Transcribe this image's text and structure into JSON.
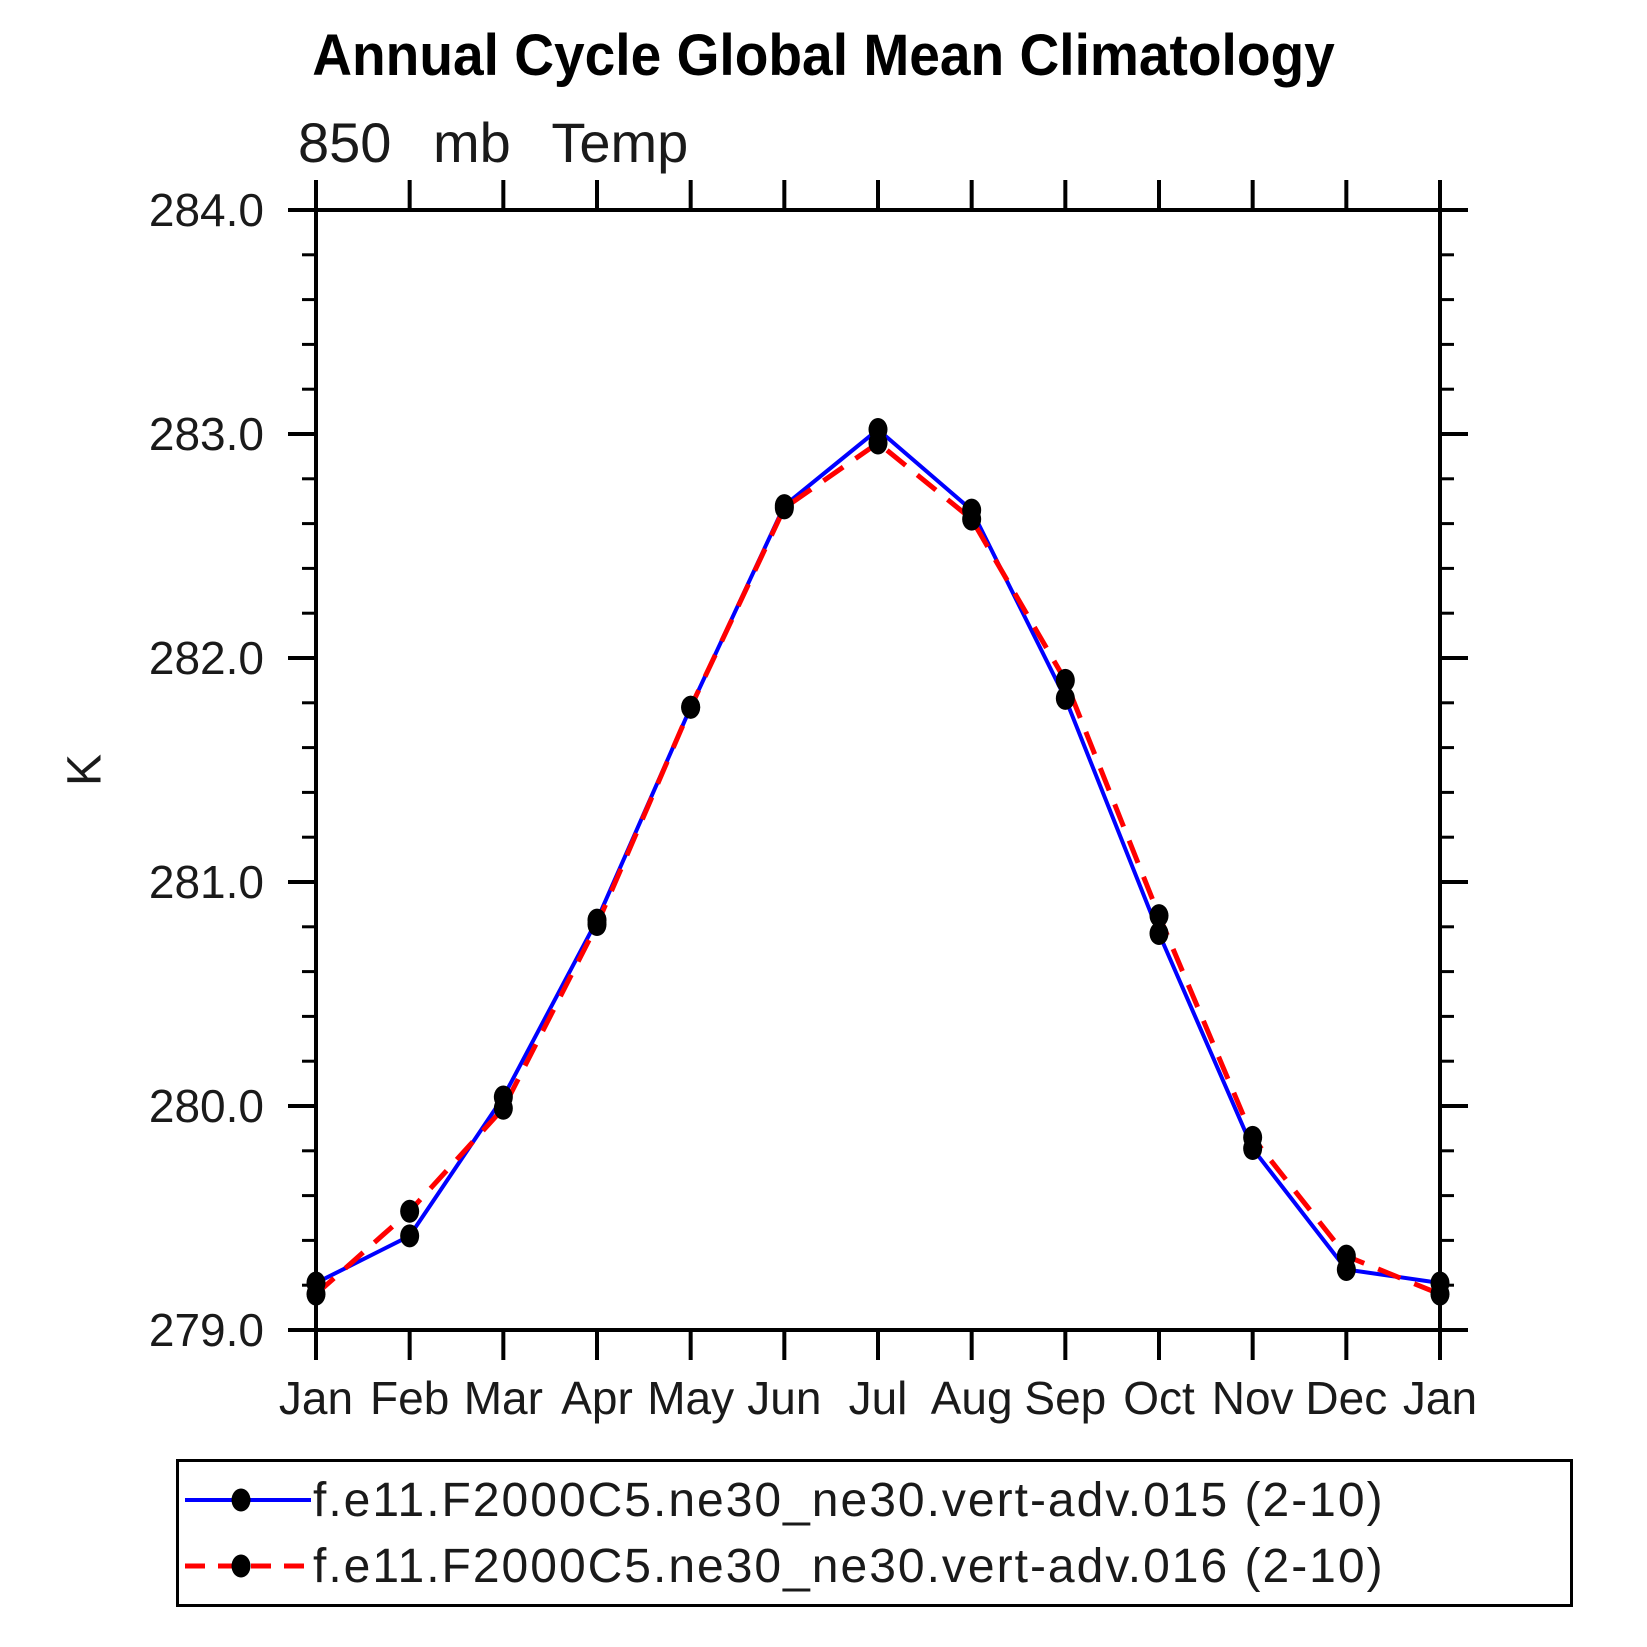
{
  "chart_data": {
    "type": "line",
    "title": "Annual Cycle Global Mean Climatology",
    "subtitle": "850 mb Temp",
    "ylabel": "K",
    "categories": [
      "Jan",
      "Feb",
      "Mar",
      "Apr",
      "May",
      "Jun",
      "Jul",
      "Aug",
      "Sep",
      "Oct",
      "Nov",
      "Dec",
      "Jan"
    ],
    "ylim": [
      279.0,
      284.0
    ],
    "y_major_step": 1.0,
    "y_minor_step": 0.2,
    "y_tick_labels": [
      "279.0",
      "280.0",
      "281.0",
      "282.0",
      "283.0",
      "284.0"
    ],
    "grid": false,
    "legend_position": "bottom",
    "marker": {
      "shape": "ellipse",
      "color": "#000000"
    },
    "axis_color": "#000000",
    "series": [
      {
        "name": "f.e11.F2000C5.ne30_ne30.vert-adv.015 (2-10)",
        "color": "#0000ff",
        "line_style": "solid",
        "values": [
          279.21,
          279.42,
          280.04,
          280.83,
          281.78,
          282.68,
          283.02,
          282.66,
          281.82,
          280.77,
          279.81,
          279.27,
          279.21
        ]
      },
      {
        "name": "f.e11.F2000C5.ne30_ne30.vert-adv.016 (2-10)",
        "color": "#ff0000",
        "line_style": "dashed",
        "values": [
          279.16,
          279.53,
          279.99,
          280.81,
          281.78,
          282.67,
          282.96,
          282.62,
          281.9,
          280.85,
          279.86,
          279.33,
          279.16
        ]
      }
    ]
  }
}
